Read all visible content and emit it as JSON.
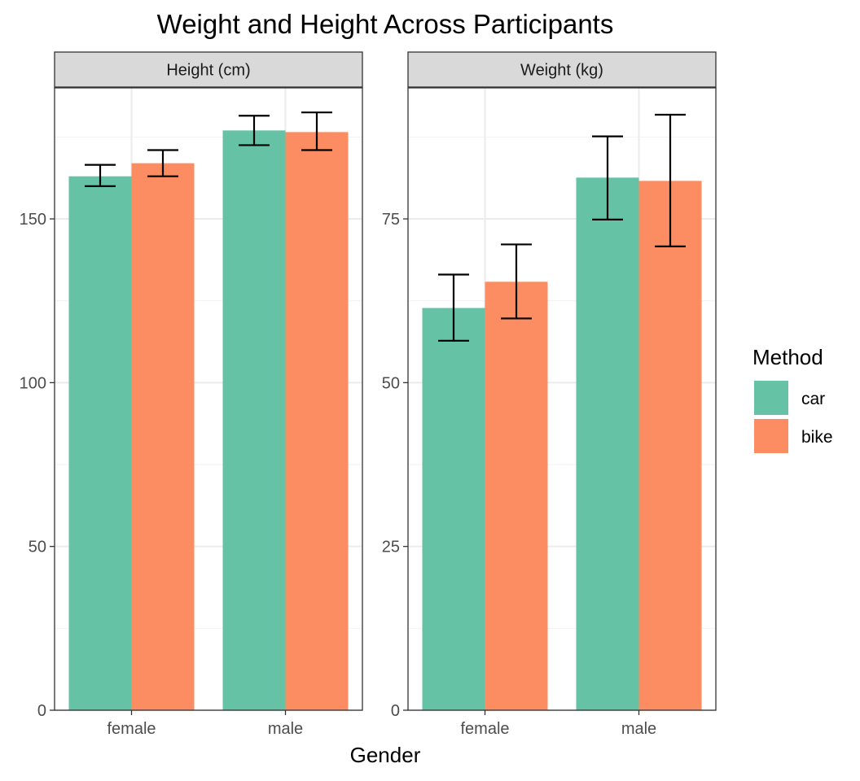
{
  "chart_data": {
    "type": "bar",
    "title": "Weight and Height Across Participants",
    "xlabel": "Gender",
    "categories": [
      "female",
      "male"
    ],
    "legend": {
      "title": "Method",
      "entries": [
        "car",
        "bike"
      ],
      "position": "right"
    },
    "colors": {
      "car": "#66c2a5",
      "bike": "#fc8d62"
    },
    "grid": true,
    "panels": [
      {
        "strip": "Height (cm)",
        "ylim": [
          0,
          190
        ],
        "yticks": [
          0,
          50,
          100,
          150
        ],
        "y_minor_step": 25,
        "series": [
          {
            "name": "car",
            "values": [
              163,
              177
            ],
            "err_low": [
              160,
              172.5
            ],
            "err_high": [
              166.5,
              181.5
            ]
          },
          {
            "name": "bike",
            "values": [
              167,
              176.5
            ],
            "err_low": [
              163,
              171
            ],
            "err_high": [
              171,
              182.5
            ]
          }
        ]
      },
      {
        "strip": "Weight (kg)",
        "ylim": [
          0,
          95
        ],
        "yticks": [
          0,
          25,
          50,
          75
        ],
        "y_minor_step": 12.5,
        "series": [
          {
            "name": "car",
            "values": [
              61.4,
              81.3
            ],
            "err_low": [
              56.4,
              74.9
            ],
            "err_high": [
              66.5,
              87.6
            ]
          },
          {
            "name": "bike",
            "values": [
              65.4,
              80.8
            ],
            "err_low": [
              59.8,
              70.8
            ],
            "err_high": [
              71.1,
              90.9
            ]
          }
        ]
      }
    ]
  }
}
